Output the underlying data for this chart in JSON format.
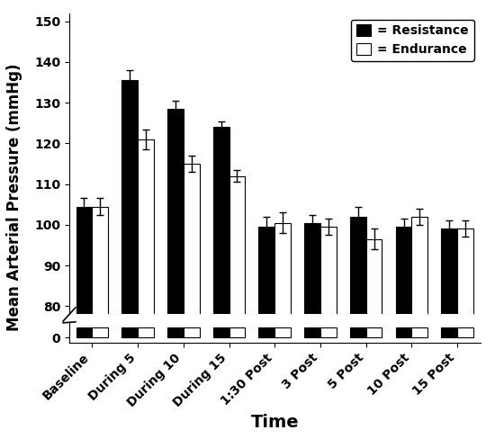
{
  "categories": [
    "Baseline",
    "During 5",
    "During 10",
    "During 15",
    "1:30 Post",
    "3 Post",
    "5 Post",
    "10 Post",
    "15 Post"
  ],
  "resistance_values": [
    104.5,
    135.5,
    128.5,
    124.0,
    99.5,
    100.5,
    102.0,
    99.5,
    99.0
  ],
  "endurance_values": [
    104.5,
    121.0,
    115.0,
    112.0,
    100.5,
    99.5,
    96.5,
    102.0,
    99.0
  ],
  "resistance_errors": [
    2.0,
    2.5,
    2.0,
    1.5,
    2.5,
    2.0,
    2.5,
    2.0,
    2.0
  ],
  "endurance_errors": [
    2.0,
    2.5,
    2.0,
    1.5,
    2.5,
    2.0,
    2.5,
    2.0,
    2.0
  ],
  "resistance_color": "#000000",
  "endurance_color": "#ffffff",
  "bar_edgecolor": "#000000",
  "ylabel": "Mean Arterial Pressure (mmHg)",
  "xlabel": "Time",
  "yticks_upper": [
    80,
    90,
    100,
    110,
    120,
    130,
    140,
    150
  ],
  "ytick_zero": [
    0
  ],
  "bar_width": 0.35,
  "legend_resistance": "= Resistance",
  "legend_endurance": "= Endurance",
  "background_color": "#ffffff",
  "label_fontsize": 12,
  "tick_fontsize": 10,
  "legend_fontsize": 10
}
